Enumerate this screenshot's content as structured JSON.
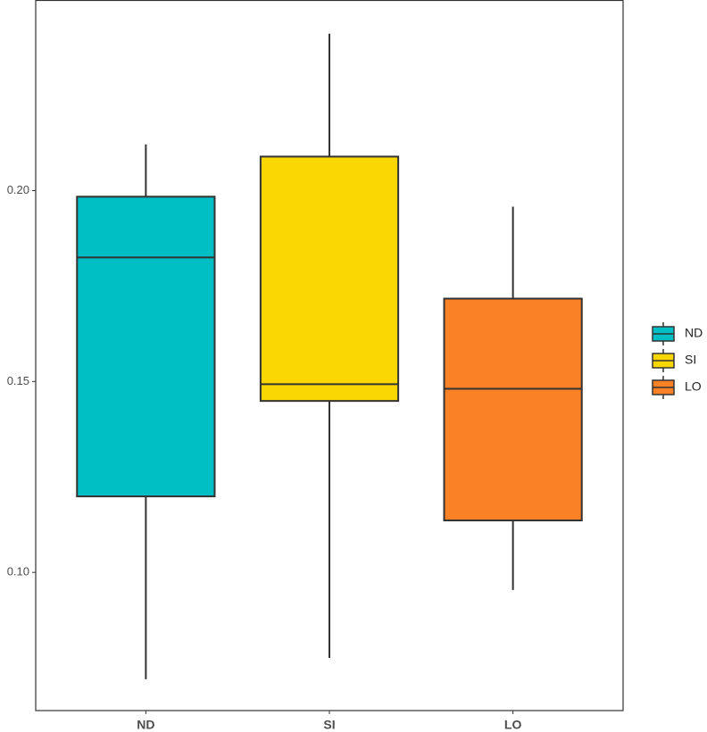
{
  "chart_data": {
    "type": "box",
    "categories": [
      "ND",
      "SI",
      "LO"
    ],
    "series": [
      {
        "name": "ND",
        "color": "#00bfc4",
        "min": 0.072,
        "q1": 0.1199,
        "median": 0.1825,
        "q3": 0.1984,
        "max": 0.2121
      },
      {
        "name": "SI",
        "color": "#fad700",
        "min": 0.0776,
        "q1": 0.1449,
        "median": 0.1493,
        "q3": 0.2089,
        "max": 0.2411
      },
      {
        "name": "LO",
        "color": "#fb8126",
        "min": 0.0954,
        "q1": 0.1136,
        "median": 0.1481,
        "q3": 0.1717,
        "max": 0.1958
      }
    ],
    "ylim": [
      0.0638,
      0.2498
    ],
    "yticks": [
      {
        "value": 0.1,
        "label": "0.10"
      },
      {
        "value": 0.15,
        "label": "0.15"
      },
      {
        "value": 0.2,
        "label": "0.20"
      }
    ],
    "legend": "right"
  }
}
